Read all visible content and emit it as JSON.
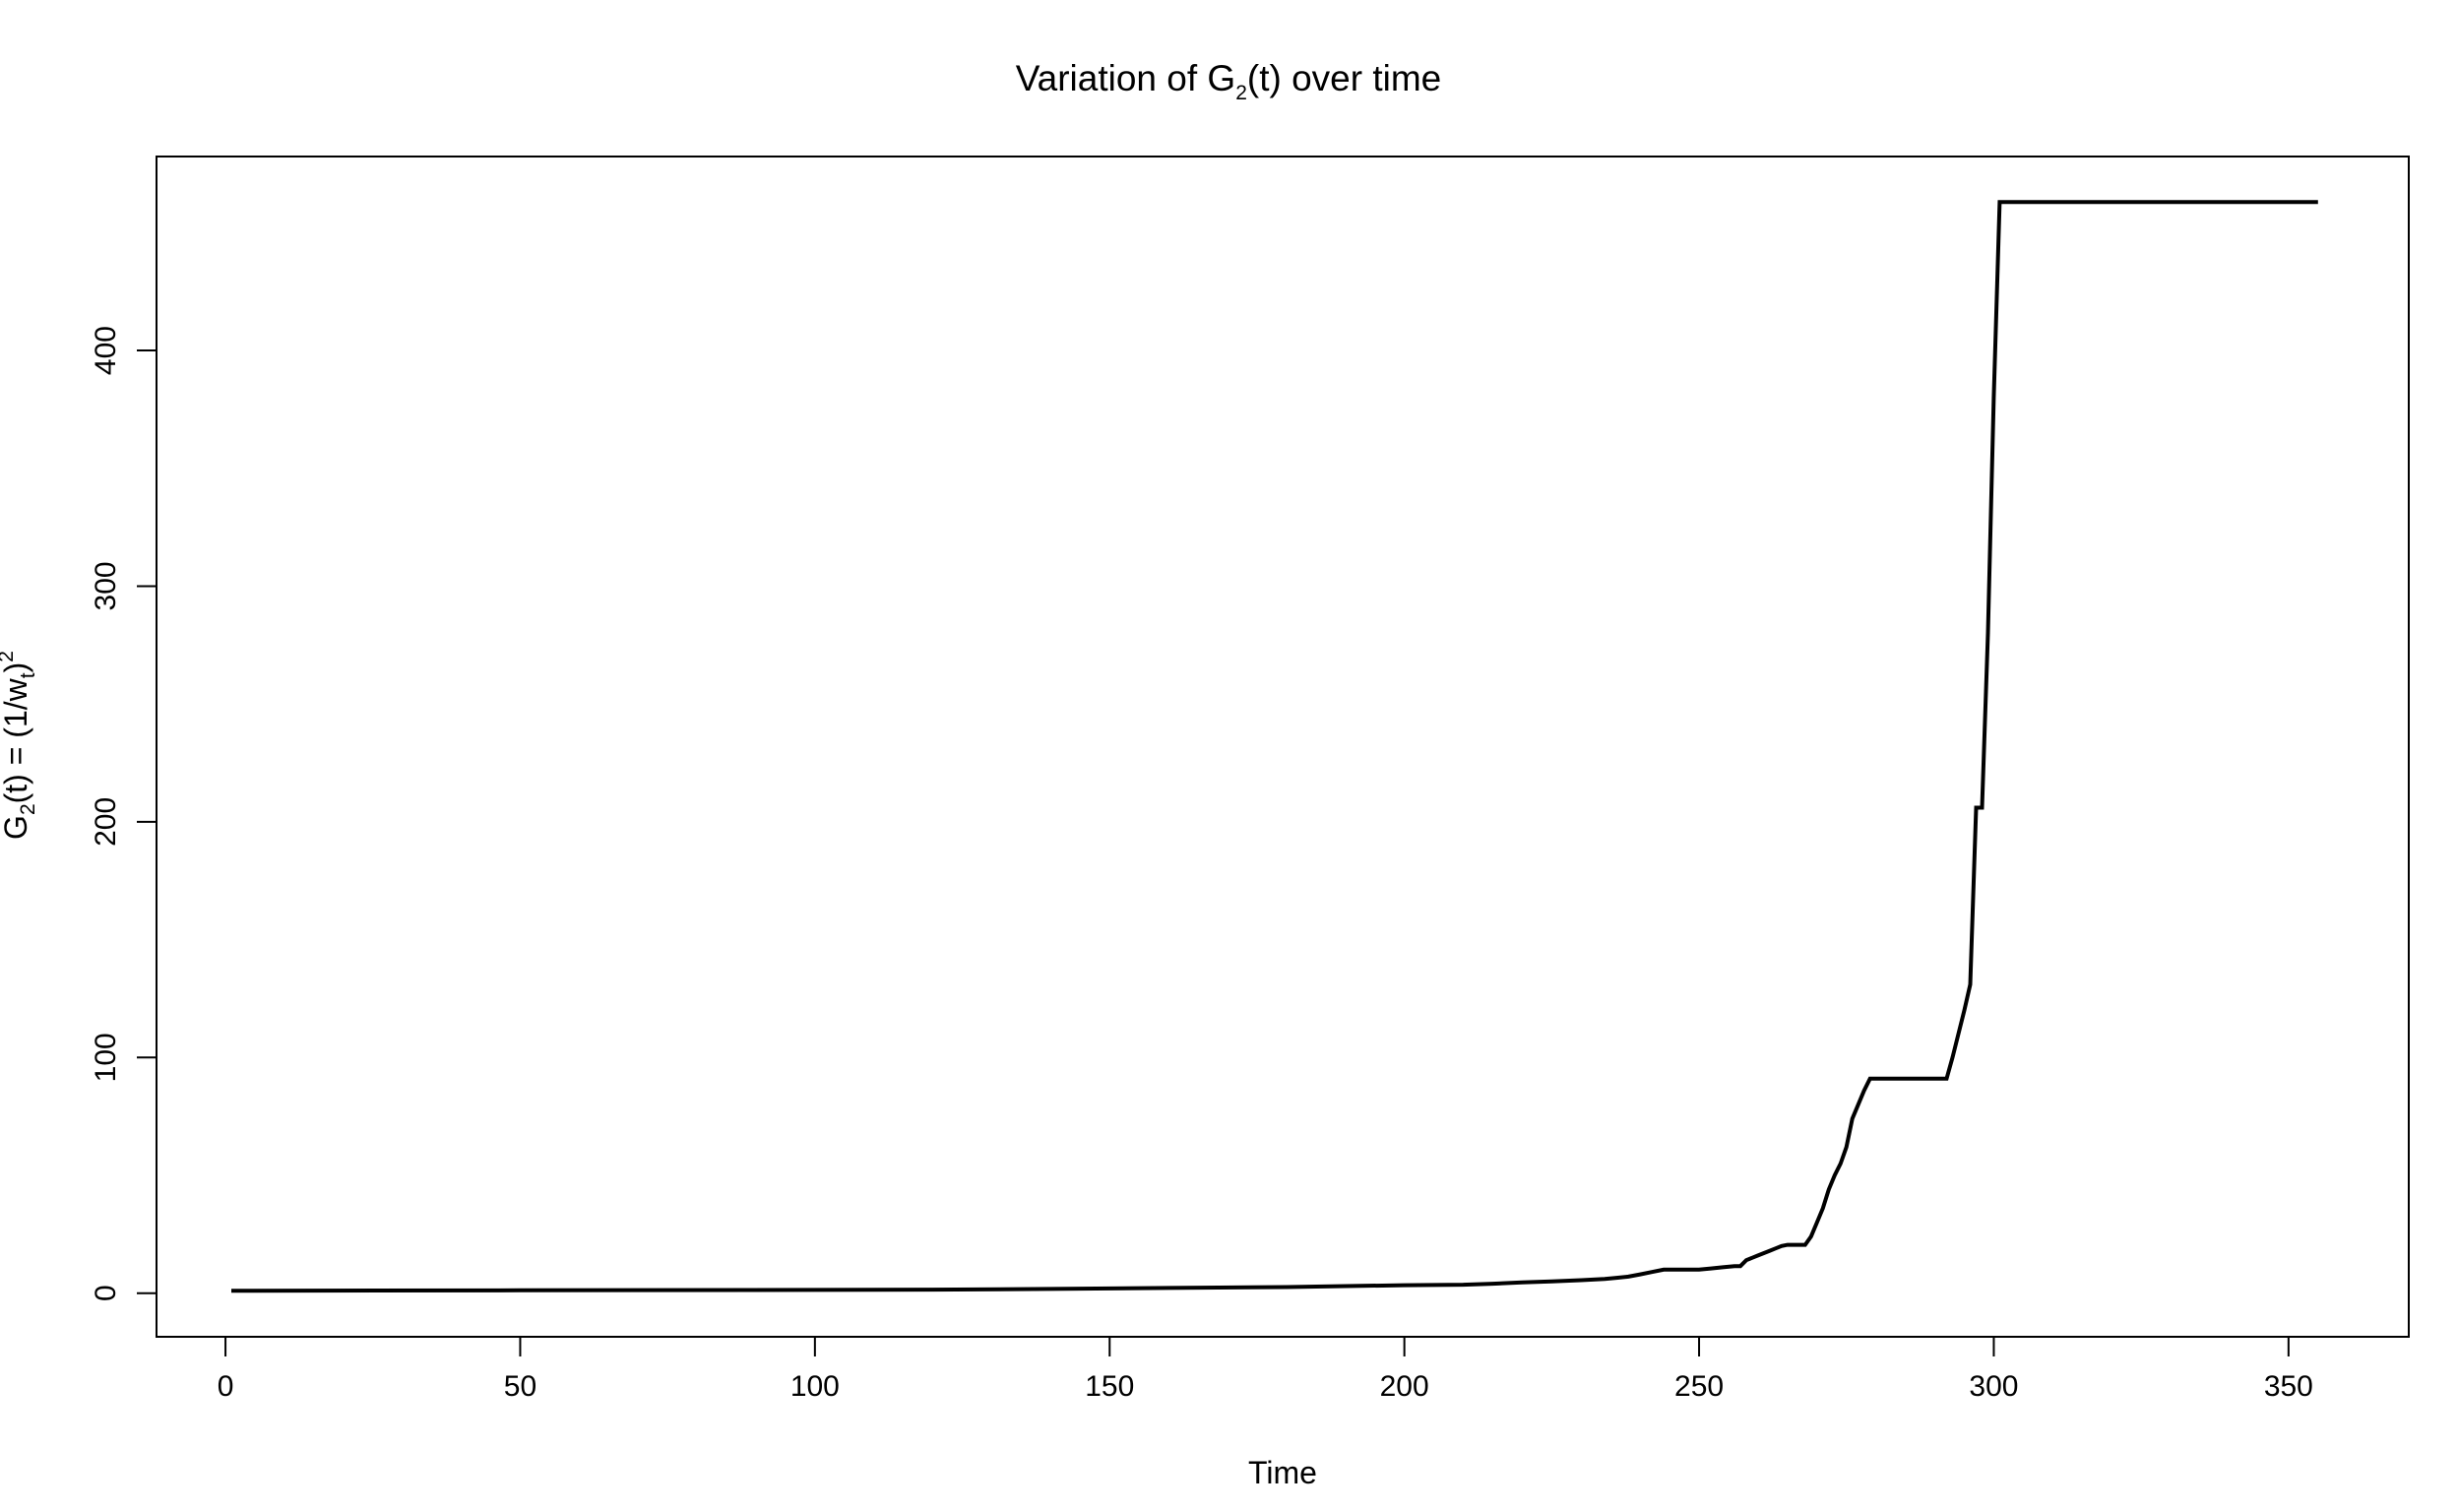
{
  "chart_data": {
    "type": "line",
    "title_parts": {
      "prefix": "Variation of  G",
      "sub": "2",
      "paren": "(t)",
      "suffix": " over time"
    },
    "xlabel": "Time",
    "ylabel_parts": {
      "g": "G",
      "g_sub": "2",
      "mid": "(t) = (1/w",
      "w_sub": "t",
      "close": ")",
      "sup": "2"
    },
    "xlim": [
      -11.7,
      370.4
    ],
    "ylim": [
      -18.5,
      482.3
    ],
    "x_ticks": [
      0,
      50,
      100,
      150,
      200,
      250,
      300,
      350
    ],
    "y_ticks": [
      0,
      100,
      200,
      300,
      400
    ],
    "grid": false,
    "line_color": "#000000",
    "series": [
      {
        "x": [
          1,
          50,
          100,
          120,
          140,
          160,
          180,
          200,
          210,
          215,
          220,
          225,
          230,
          234,
          236,
          238,
          240,
          242,
          244,
          246,
          248,
          250,
          252,
          254,
          256,
          257,
          258,
          259,
          260,
          261,
          262,
          263,
          264,
          265,
          266,
          267,
          268,
          269,
          270,
          271,
          272,
          273,
          274,
          275,
          276,
          277,
          278,
          279,
          280,
          285,
          290,
          292,
          293,
          294,
          295,
          296,
          297,
          297.5,
          298,
          299,
          300,
          301,
          302,
          355
        ],
        "y": [
          1,
          1.2,
          1.4,
          1.5,
          1.8,
          2.2,
          2.6,
          3.4,
          3.6,
          4,
          4.6,
          5,
          5.5,
          6,
          6.5,
          7,
          8,
          9,
          10,
          10,
          10,
          10,
          10.5,
          11,
          11.5,
          11.5,
          14,
          15,
          16,
          17,
          18,
          19,
          20,
          20.5,
          20.5,
          20.5,
          20.5,
          24,
          30,
          36,
          44,
          50,
          55,
          62,
          74,
          80,
          86,
          91,
          91,
          91,
          91,
          91,
          100,
          110,
          120,
          131,
          206,
          206,
          206,
          280,
          380,
          463,
          463,
          463
        ]
      }
    ]
  }
}
